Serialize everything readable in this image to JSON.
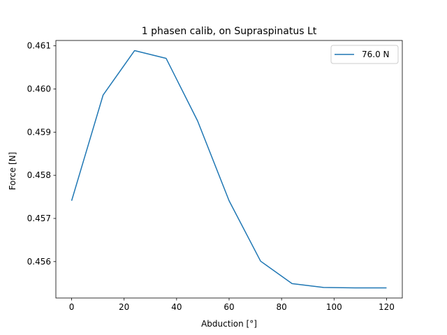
{
  "chart_data": {
    "type": "line",
    "title": "1 phasen calib, on Supraspinatus Lt",
    "xlabel": "Abduction [°]",
    "ylabel": "Force [N]",
    "xlim": [
      -6,
      126
    ],
    "ylim": [
      0.455156,
      0.461124
    ],
    "xticks": [
      0,
      20,
      40,
      60,
      80,
      100,
      120
    ],
    "xtick_labels": [
      "0",
      "20",
      "40",
      "60",
      "80",
      "100",
      "120"
    ],
    "yticks": [
      0.456,
      0.457,
      0.458,
      0.459,
      0.46,
      0.461
    ],
    "ytick_labels": [
      "0.456",
      "0.457",
      "0.458",
      "0.459",
      "0.460",
      "0.461"
    ],
    "grid": false,
    "legend_position": "top-right",
    "series": [
      {
        "name": "76.0 N",
        "color": "#1f77b4",
        "x": [
          0,
          12,
          24,
          36,
          48,
          60,
          72,
          84,
          96,
          108,
          120
        ],
        "y": [
          0.45741,
          0.45986,
          0.46089,
          0.46071,
          0.45926,
          0.45741,
          0.45601,
          0.45549,
          0.4554,
          0.45539,
          0.45539
        ]
      }
    ]
  }
}
